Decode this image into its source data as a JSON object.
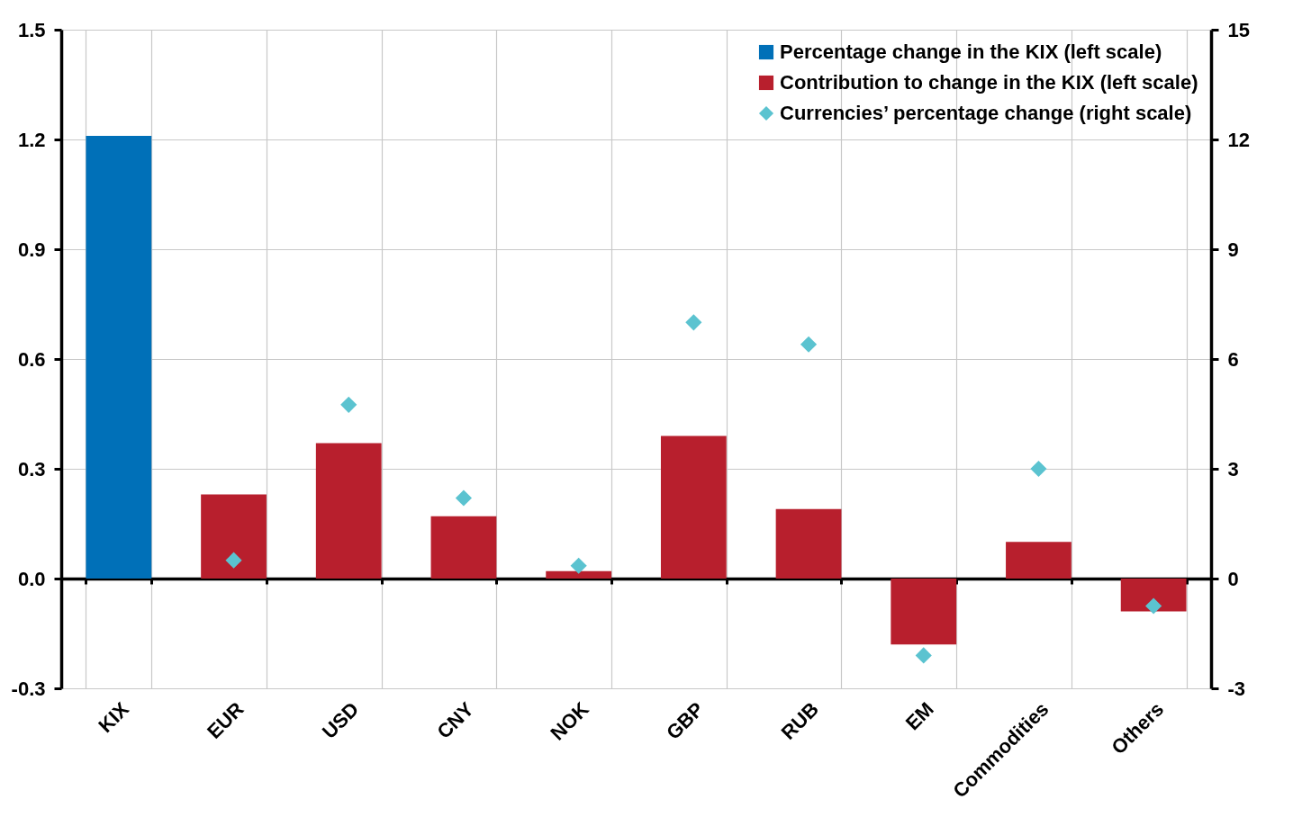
{
  "chart_data": {
    "type": "bar",
    "categories": [
      "KIX",
      "EUR",
      "USD",
      "CNY",
      "NOK",
      "GBP",
      "RUB",
      "EM",
      "Commodities",
      "Others"
    ],
    "series": [
      {
        "name": "Percentage change in the KIX (left scale)",
        "color": "#0070b8",
        "values": [
          1.21,
          null,
          null,
          null,
          null,
          null,
          null,
          null,
          null,
          null
        ]
      },
      {
        "name": "Contribution to change in the KIX (left scale)",
        "color": "#b81f2d",
        "values": [
          null,
          0.23,
          0.37,
          0.17,
          0.02,
          0.39,
          0.19,
          -0.18,
          0.1,
          -0.09
        ]
      },
      {
        "name": "Currencies’ percentage change (right scale)",
        "color": "#5bc3d0",
        "type": "scatter",
        "marker": "diamond",
        "axis": "y2",
        "values": [
          null,
          0.5,
          4.75,
          2.2,
          0.35,
          7.0,
          6.4,
          -2.1,
          3.0,
          -0.75
        ]
      }
    ],
    "ylim": [
      -0.3,
      1.5
    ],
    "yticks": [
      {
        "value": -0.3,
        "label": "-0.3"
      },
      {
        "value": 0,
        "label": "0.0"
      },
      {
        "value": 0.3,
        "label": "0.3"
      },
      {
        "value": 0.6,
        "label": "0.6"
      },
      {
        "value": 0.9,
        "label": "0.9"
      },
      {
        "value": 1.2,
        "label": "1.2"
      },
      {
        "value": 1.5,
        "label": "1.5"
      }
    ],
    "y2lim": [
      -3,
      15
    ],
    "y2ticks": [
      -3,
      0,
      3,
      6,
      9,
      12,
      15
    ],
    "grid": true,
    "legend": "top right"
  }
}
